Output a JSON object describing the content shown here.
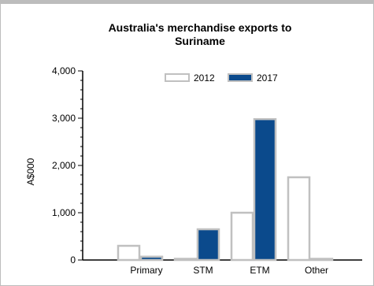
{
  "chart_data": {
    "type": "bar",
    "title_lines": [
      "Australia's merchandise exports to",
      "Suriname"
    ],
    "ylabel": "A$000",
    "xlabel": "",
    "categories": [
      "Primary",
      "STM",
      "ETM",
      "Other"
    ],
    "ylim": [
      0,
      4000
    ],
    "yticks": [
      0,
      1000,
      2000,
      3000,
      4000
    ],
    "ytick_labels": [
      "0",
      "1,000",
      "2,000",
      "3,000",
      "4,000"
    ],
    "series": [
      {
        "name": "2012",
        "values": [
          300,
          0,
          1000,
          1750
        ],
        "fill": "#ffffff",
        "stroke": "#c0c0c0"
      },
      {
        "name": "2017",
        "values": [
          70,
          650,
          2980,
          0
        ],
        "fill": "#0b4a8c",
        "stroke": "#c0c0c0"
      }
    ],
    "legend_position": "top-right",
    "grid": false,
    "axis_color": "#000000"
  }
}
